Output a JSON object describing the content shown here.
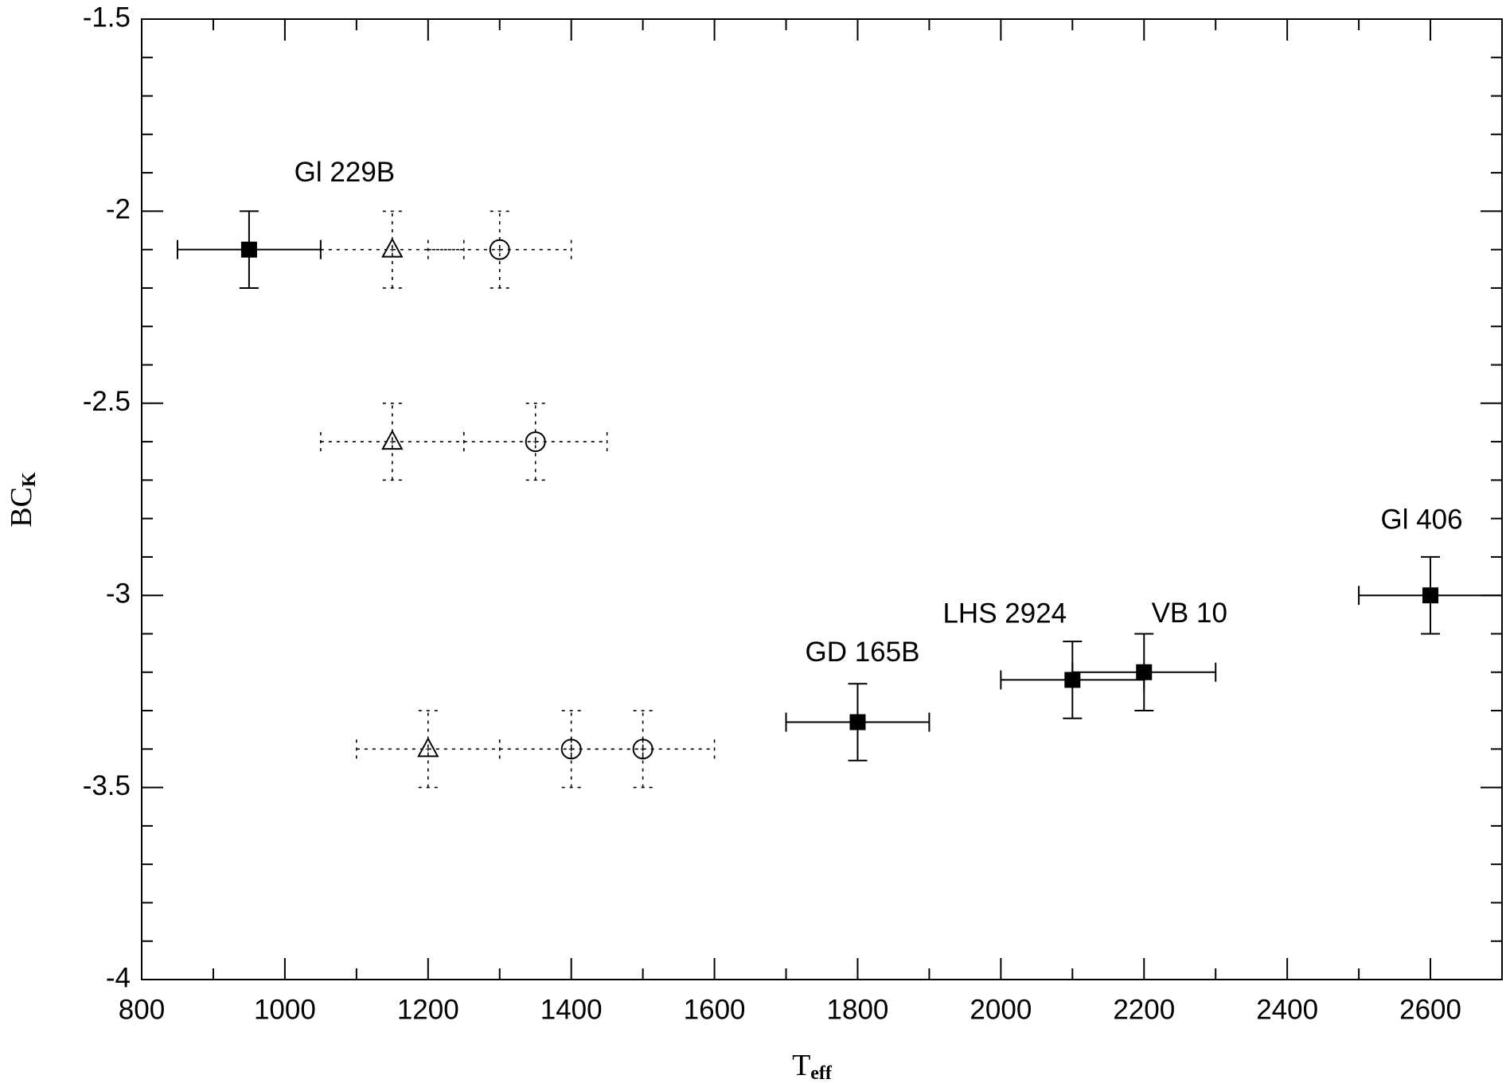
{
  "chart_data": {
    "type": "scatter",
    "xlabel": "T",
    "xlabel_sub": "eff",
    "ylabel": "BC",
    "ylabel_sub": "K",
    "xlim": [
      800,
      2700
    ],
    "xticks": [
      800,
      1000,
      1200,
      1400,
      1600,
      1800,
      2000,
      2200,
      2400,
      2600
    ],
    "ylim": [
      -4,
      -1.5
    ],
    "yticks": [
      -4,
      -3.5,
      -3,
      -2.5,
      -2,
      -1.5
    ],
    "series": [
      {
        "marker": "square",
        "filled": true,
        "dashed": false,
        "color": "#000000",
        "x": [
          950,
          1800,
          2100,
          2200,
          2600
        ],
        "y": [
          -2.1,
          -3.33,
          -3.22,
          -3.2,
          -3.0
        ],
        "xerr": [
          100,
          100,
          100,
          100,
          100
        ],
        "yerr": [
          0.1,
          0.1,
          0.1,
          0.1,
          0.1
        ],
        "labels": [
          "Gl 229B",
          "GD 165B",
          "LHS 2924",
          "VB 10",
          "Gl 406"
        ]
      },
      {
        "marker": "triangle",
        "filled": false,
        "dashed": true,
        "color": "#000000",
        "x": [
          1150,
          1150,
          1200
        ],
        "y": [
          -2.1,
          -2.6,
          -3.4
        ],
        "xerr": [
          100,
          100,
          100
        ],
        "yerr": [
          0.1,
          0.1,
          0.1
        ]
      },
      {
        "marker": "circle",
        "filled": false,
        "dashed": true,
        "color": "#000000",
        "x": [
          1300,
          1350,
          1400,
          1500
        ],
        "y": [
          -2.1,
          -2.6,
          -3.4,
          -3.4
        ],
        "xerr": [
          100,
          100,
          100,
          100
        ],
        "yerr": [
          0.1,
          0.1,
          0.1,
          0.1
        ]
      }
    ]
  }
}
